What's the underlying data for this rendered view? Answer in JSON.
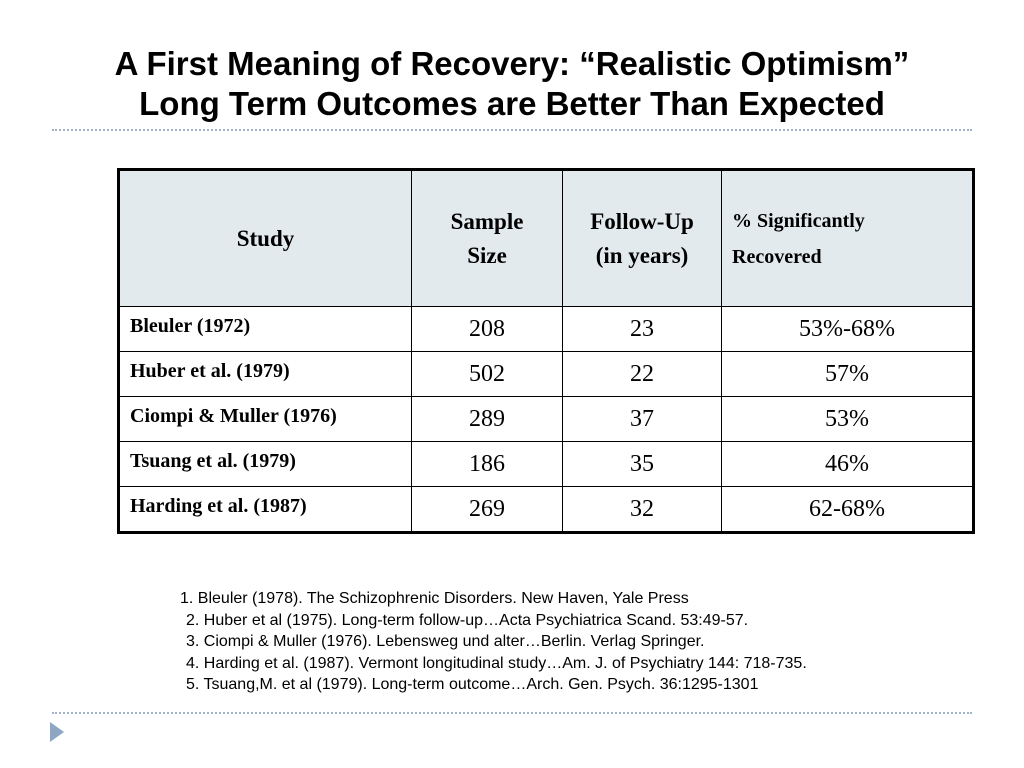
{
  "title": {
    "line1": "A First Meaning of Recovery: “Realistic Optimism”",
    "line2": "Long Term Outcomes are Better Than Expected"
  },
  "table": {
    "headers": {
      "study": "Study",
      "sample_size_1": "Sample",
      "sample_size_2": "Size",
      "follow_up_1": "Follow-Up",
      "follow_up_2": "(in years)",
      "pct_1": "% Significantly",
      "pct_2": "Recovered"
    },
    "rows": [
      {
        "study": "Bleuler (1972)",
        "sample_size": "208",
        "follow_up": "23",
        "pct": "53%-68%"
      },
      {
        "study": "Huber et al. (1979)",
        "sample_size": "502",
        "follow_up": "22",
        "pct": "57%"
      },
      {
        "study": "Ciompi & Muller (1976)",
        "sample_size": "289",
        "follow_up": "37",
        "pct": "53%"
      },
      {
        "study": "Tsuang et al. (1979)",
        "sample_size": "186",
        "follow_up": "35",
        "pct": "46%"
      },
      {
        "study": "Harding et al. (1987)",
        "sample_size": "269",
        "follow_up": "32",
        "pct": "62-68%"
      }
    ]
  },
  "references": [
    "1. Bleuler (1978). The Schizophrenic Disorders. New Haven, Yale Press",
    "2. Huber et al (1975). Long-term follow-up…Acta Psychiatrica Scand. 53:49-57.",
    "3. Ciompi & Muller (1976). Lebensweg und alter…Berlin. Verlag Springer.",
    "4. Harding et al. (1987). Vermont longitudinal study…Am. J. of Psychiatry 144: 718-735.",
    "5. Tsuang,M. et al (1979). Long-term outcome…Arch. Gen. Psych. 36:1295-1301"
  ],
  "colors": {
    "header_fill": "#e3eaed",
    "divider": "#9fb2c8",
    "nav_arrow": "#8fa6c3"
  },
  "icons": {
    "next_slide": "triangle-right-icon"
  }
}
